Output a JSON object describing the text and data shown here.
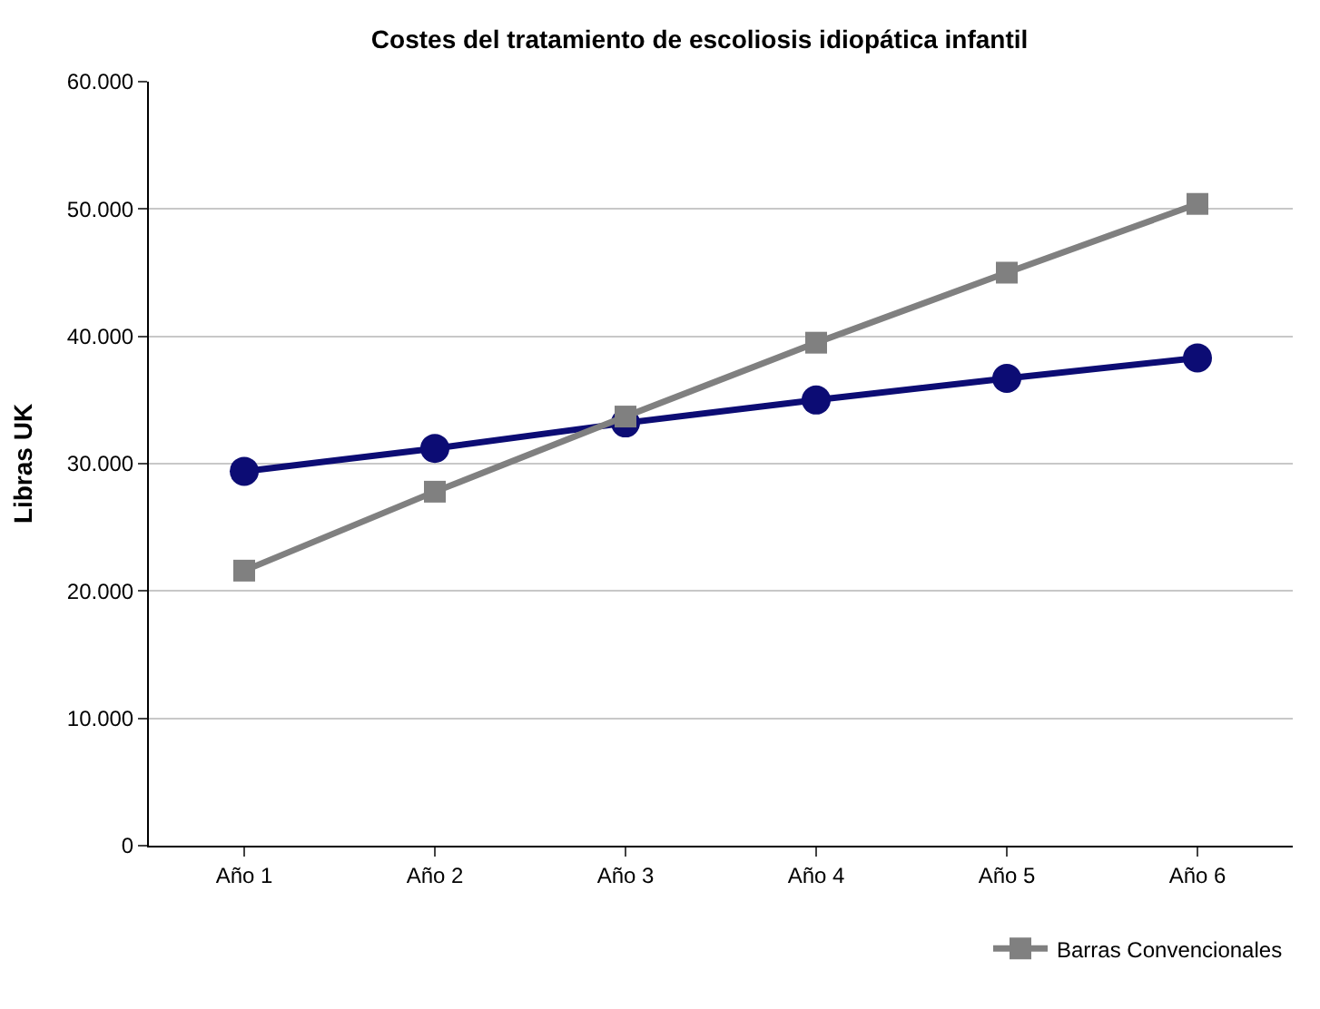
{
  "chart_data": {
    "type": "line",
    "title": "Costes del tratamiento de escoliosis idiopática infantil",
    "ylabel": "Libras UK",
    "categories": [
      "Año 1",
      "Año 2",
      "Año 3",
      "Año 4",
      "Año 5",
      "Año 6"
    ],
    "series": [
      {
        "color": "#0c0c74",
        "marker": "circle",
        "values": [
          29400,
          31200,
          33200,
          35000,
          36700,
          38300
        ]
      },
      {
        "name": "Barras Convencionales",
        "color": "#808080",
        "marker": "square",
        "values": [
          21600,
          27800,
          33700,
          39500,
          45000,
          50400
        ]
      }
    ],
    "ylim": [
      0,
      60000
    ],
    "yticks": [
      {
        "value": 0,
        "label": "0"
      },
      {
        "value": 10000,
        "label": "10.000"
      },
      {
        "value": 20000,
        "label": "20.000"
      },
      {
        "value": 30000,
        "label": "30.000"
      },
      {
        "value": 40000,
        "label": "40.000"
      },
      {
        "value": 50000,
        "label": "50.000"
      },
      {
        "value": 60000,
        "label": "60.000"
      }
    ],
    "grid": "y",
    "legend": "bottom right",
    "line_style": "solid"
  }
}
